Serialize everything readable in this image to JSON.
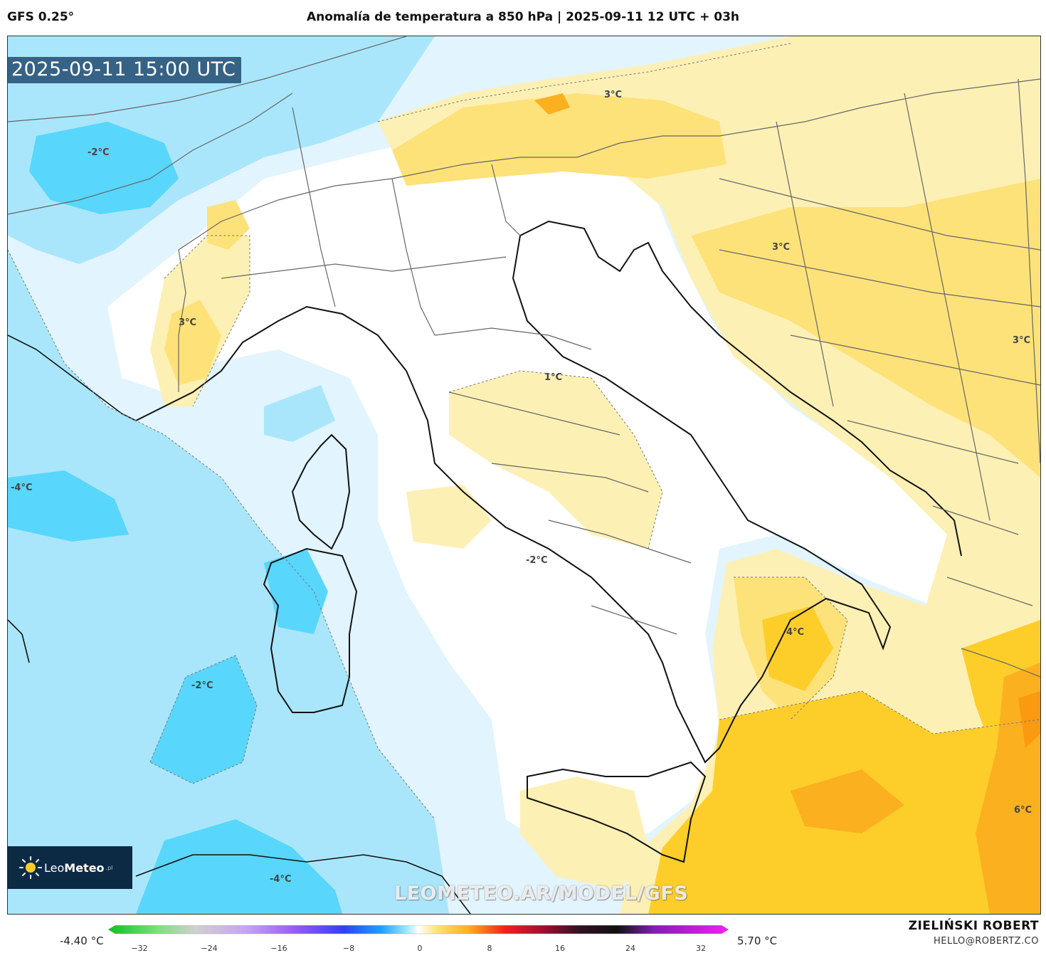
{
  "header": {
    "model": "GFS 0.25°",
    "title": "Anomalía de temperatura a 850 hPa | 2025-09-11 12 UTC + 03h"
  },
  "map": {
    "valid_time": "2025-09-11 15:00 UTC",
    "contour_labels": [
      "3°C",
      "-2°C",
      "3°C",
      "3°C",
      "3°C",
      "1°C",
      "-4°C",
      "-2°C",
      "4°C",
      "-2°C",
      "6°C",
      "-4°C"
    ],
    "colors": {
      "cold_light": "#e2f4fd",
      "cold_mid": "#a9e6fb",
      "cold_strong": "#58d6fb",
      "warm_light": "#fdf0b4",
      "warm_mid": "#fde27a",
      "warm_strong": "#fdce2a",
      "warm_deep": "#fbb020"
    }
  },
  "logo": {
    "name_prefix": "Leo",
    "name_bold": "Meteo",
    "tld": ".pl"
  },
  "watermark": "LEOMETEO.AR/MODEL/GFS",
  "colorbar": {
    "min_label": "-4.40 °C",
    "max_label": "5.70 °C",
    "ticks": [
      "−32",
      "−24",
      "−16",
      "−8",
      "0",
      "8",
      "16",
      "24",
      "32"
    ]
  },
  "footer": {
    "author": "ZIELIŃSKI ROBERT",
    "email": "HELLO@ROBERTZ.CO"
  }
}
